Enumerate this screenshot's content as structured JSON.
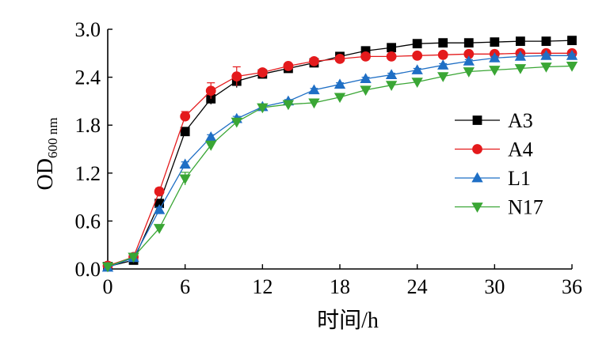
{
  "chart_data": {
    "type": "line",
    "title": "",
    "xlabel": "时间/h",
    "ylabel": {
      "main": "OD",
      "sub": "600 nm"
    },
    "xlim": [
      0,
      36
    ],
    "ylim": [
      0,
      3.0
    ],
    "xticks": [
      "0",
      "6",
      "12",
      "18",
      "24",
      "30",
      "36"
    ],
    "yticks": [
      "0.0",
      "0.6",
      "1.2",
      "1.8",
      "2.4",
      "3.0"
    ],
    "grid": false,
    "legend_position": "right",
    "x": [
      0,
      2,
      4,
      6,
      8,
      10,
      12,
      14,
      16,
      18,
      20,
      22,
      24,
      26,
      28,
      30,
      32,
      34,
      36
    ],
    "series": [
      {
        "name": "A3",
        "color": "#000000",
        "marker": "square",
        "values": [
          0.03,
          0.11,
          0.82,
          1.72,
          2.13,
          2.35,
          2.44,
          2.51,
          2.58,
          2.66,
          2.73,
          2.77,
          2.82,
          2.83,
          2.83,
          2.84,
          2.85,
          2.85,
          2.86
        ],
        "errors": [
          0.02,
          0.02,
          0.03,
          0.04,
          0.07,
          0.08,
          0.03,
          0.03,
          0.02,
          0.02,
          0.02,
          0.02,
          0.02,
          0.02,
          0.02,
          0.02,
          0.02,
          0.02,
          0.02
        ]
      },
      {
        "name": "A4",
        "color": "#e41a1c",
        "marker": "circle",
        "values": [
          0.04,
          0.15,
          0.97,
          1.91,
          2.23,
          2.41,
          2.46,
          2.54,
          2.6,
          2.63,
          2.66,
          2.66,
          2.67,
          2.68,
          2.69,
          2.69,
          2.7,
          2.7,
          2.7
        ],
        "errors": [
          0.02,
          0.02,
          0.04,
          0.06,
          0.1,
          0.12,
          0.03,
          0.03,
          0.02,
          0.02,
          0.02,
          0.02,
          0.02,
          0.02,
          0.02,
          0.02,
          0.02,
          0.02,
          0.02
        ]
      },
      {
        "name": "L1",
        "color": "#1f6fc5",
        "marker": "triangle-up",
        "values": [
          0.02,
          0.14,
          0.74,
          1.31,
          1.65,
          1.88,
          2.03,
          2.1,
          2.24,
          2.31,
          2.38,
          2.43,
          2.49,
          2.55,
          2.6,
          2.64,
          2.66,
          2.67,
          2.67
        ],
        "errors": [
          0.02,
          0.02,
          0.03,
          0.03,
          0.03,
          0.03,
          0.02,
          0.02,
          0.02,
          0.02,
          0.02,
          0.02,
          0.02,
          0.02,
          0.02,
          0.02,
          0.02,
          0.02,
          0.02
        ]
      },
      {
        "name": "N17",
        "color": "#3aa635",
        "marker": "triangle-down",
        "values": [
          0.03,
          0.15,
          0.51,
          1.13,
          1.55,
          1.84,
          2.02,
          2.06,
          2.08,
          2.15,
          2.24,
          2.3,
          2.34,
          2.41,
          2.47,
          2.49,
          2.51,
          2.53,
          2.54
        ],
        "errors": [
          0.02,
          0.02,
          0.03,
          0.08,
          0.05,
          0.04,
          0.03,
          0.02,
          0.02,
          0.02,
          0.02,
          0.02,
          0.02,
          0.02,
          0.02,
          0.02,
          0.02,
          0.02,
          0.02
        ]
      }
    ]
  }
}
